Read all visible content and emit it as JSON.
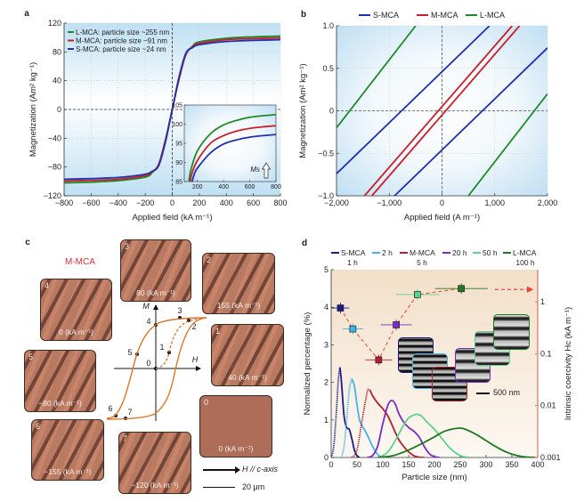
{
  "panel_labels": {
    "a": "a",
    "b": "b",
    "c": "c",
    "d": "d"
  },
  "chart_data": [
    {
      "panel": "a",
      "type": "line",
      "xlabel": "Applied field (kA m⁻¹)",
      "ylabel": "Magnetization (Am² kg⁻¹)",
      "xlim": [
        -800,
        800
      ],
      "ylim": [
        -120,
        120
      ],
      "xticks": [
        -800,
        -600,
        -400,
        -200,
        0,
        200,
        400,
        600,
        800
      ],
      "xtick_labels": [
        "−800",
        "−600",
        "−400",
        "−200",
        "0",
        "200",
        "400",
        "600",
        "800"
      ],
      "yticks": [
        -120,
        -80,
        -40,
        0,
        40,
        80,
        120
      ],
      "ytick_labels": [
        "−120",
        "−80",
        "−40",
        "0",
        "40",
        "80",
        "120"
      ],
      "grid": true,
      "legend_placement": "top-left",
      "series": [
        {
          "name": "L-MCA: particle size ~255 nm",
          "color": "#1f8a2a",
          "x": [
            -800,
            -600,
            -400,
            -200,
            -150,
            -100,
            -50,
            0,
            50,
            100,
            150,
            200,
            400,
            600,
            800
          ],
          "y": [
            -102,
            -101,
            -99,
            -94,
            -88,
            -76,
            -42,
            0,
            42,
            76,
            88,
            94,
            99,
            101,
            102
          ]
        },
        {
          "name": "M-MCA: particle size ~91 nm",
          "color": "#c8202a",
          "x": [
            -800,
            -600,
            -400,
            -200,
            -150,
            -100,
            -50,
            0,
            50,
            100,
            150,
            200,
            400,
            600,
            800
          ],
          "y": [
            -99.5,
            -98.5,
            -97,
            -92,
            -87,
            -76,
            -42,
            0,
            42,
            76,
            87,
            92,
            97,
            98.5,
            99.5
          ]
        },
        {
          "name": "S-MCA: particle size ~24 nm",
          "color": "#2030b0",
          "x": [
            -800,
            -600,
            -400,
            -200,
            -150,
            -100,
            -50,
            0,
            50,
            100,
            150,
            200,
            400,
            600,
            800
          ],
          "y": [
            -97,
            -96,
            -94.5,
            -90,
            -86,
            -78,
            -45,
            0,
            45,
            78,
            86,
            90,
            94.5,
            96,
            97
          ]
        }
      ],
      "inset": {
        "xlim": [
          100,
          800
        ],
        "ylim": [
          85,
          105
        ],
        "xticks": [
          200,
          400,
          600,
          800
        ],
        "xtick_labels": [
          "200",
          "400",
          "600",
          "800"
        ],
        "yticks": [
          85,
          90,
          95,
          100,
          105
        ],
        "ytick_labels": [
          "85",
          "90",
          "95",
          "100",
          "105"
        ],
        "annotation": "Ms",
        "series": [
          {
            "color": "#1f8a2a",
            "x": [
              135,
              150,
              200,
              300,
              400,
              500,
              600,
              700,
              800
            ],
            "y": [
              85,
              88,
              93,
              97.5,
              99.8,
              101,
              101.8,
              102.2,
              102.5
            ]
          },
          {
            "color": "#c8202a",
            "x": [
              145,
              160,
              200,
              300,
              400,
              500,
              600,
              700,
              800
            ],
            "y": [
              85,
              87.3,
              90.5,
              95,
              97,
              98.2,
              98.9,
              99.3,
              99.6
            ]
          },
          {
            "color": "#2030b0",
            "x": [
              160,
              175,
              200,
              300,
              400,
              500,
              600,
              700,
              800
            ],
            "y": [
              85,
              86.8,
              88.5,
              92.5,
              94.8,
              95.9,
              96.6,
              97,
              97.3
            ]
          }
        ]
      }
    },
    {
      "panel": "b",
      "type": "line",
      "xlabel": "Applied field (A m⁻¹)",
      "ylabel": "Magnetization (Am² kg⁻¹)",
      "xlim": [
        -2000,
        2000
      ],
      "ylim": [
        -1.0,
        1.0
      ],
      "xticks": [
        -2000,
        -1000,
        0,
        1000,
        2000
      ],
      "xtick_labels": [
        "−2,000",
        "−1,000",
        "0",
        "1,000",
        "2,000"
      ],
      "yticks": [
        -1.0,
        -0.5,
        0,
        0.5,
        1.0
      ],
      "ytick_labels": [
        "−1.0",
        "−0.5",
        "0",
        "0.5",
        "1.0"
      ],
      "grid": true,
      "legend_placement": "top",
      "series": [
        {
          "name": "S-MCA",
          "color": "#2030b0",
          "branches": [
            [
              [
                -2000,
                -0.74
              ],
              [
                900,
                1.0
              ]
            ],
            [
              [
                -900,
                -1.0
              ],
              [
                2000,
                0.74
              ]
            ]
          ]
        },
        {
          "name": "M-MCA",
          "color": "#c8202a",
          "branches": [
            [
              [
                -1470,
                -1.0
              ],
              [
                1330,
                1.0
              ]
            ],
            [
              [
                -1330,
                -1.0
              ],
              [
                1470,
                1.0
              ]
            ]
          ]
        },
        {
          "name": "L-MCA",
          "color": "#1f8a2a",
          "branches": [
            [
              [
                -2000,
                -0.2
              ],
              [
                -500,
                1.0
              ]
            ],
            [
              [
                500,
                -1.0
              ],
              [
                2000,
                0.2
              ]
            ]
          ]
        }
      ]
    },
    {
      "panel": "d",
      "type": "line",
      "xlabel": "Particle size (nm)",
      "ylabel": "Normalized percentage (%)",
      "y2label": "Intrinsic coercivity Hc (kA m⁻¹)",
      "xlim": [
        0,
        400
      ],
      "ylim": [
        0,
        5
      ],
      "y2lim": [
        0.001,
        4.2
      ],
      "y2scale": "log",
      "xticks": [
        0,
        50,
        100,
        150,
        200,
        250,
        300,
        350,
        400
      ],
      "xtick_labels": [
        "0",
        "50",
        "100",
        "150",
        "200",
        "250",
        "300",
        "350",
        "400"
      ],
      "yticks": [
        0,
        1,
        2,
        3,
        4,
        5
      ],
      "ytick_labels": [
        "0",
        "1",
        "2",
        "3",
        "4",
        "5"
      ],
      "y2ticks": [
        0.001,
        0.01,
        0.1,
        1
      ],
      "y2tick_labels": [
        "0.001",
        "0.01",
        "0.1",
        "1"
      ],
      "legend_placement": "top",
      "scale_bar": "500 nm",
      "series": [
        {
          "name": "S-MCA",
          "sub": "1 h",
          "color": "#1c1c86",
          "x": [
            0,
            5,
            10,
            14,
            17,
            20,
            25,
            30,
            35,
            40,
            45,
            50,
            55
          ],
          "y": [
            0,
            0.3,
            1.2,
            2.1,
            2.4,
            2.0,
            1.1,
            0.8,
            0.75,
            0.5,
            0.2,
            0.05,
            0
          ],
          "hc": {
            "size": 18,
            "size_err": 17,
            "value": 0.76
          }
        },
        {
          "name": "2 h",
          "sub": "",
          "color": "#3cb6ec",
          "x": [
            20,
            25,
            30,
            35,
            40,
            45,
            50,
            55,
            60,
            70,
            80,
            90,
            100
          ],
          "y": [
            0,
            0.3,
            1.0,
            1.8,
            2.1,
            1.9,
            1.4,
            1.0,
            0.85,
            0.6,
            0.3,
            0.08,
            0
          ],
          "hc": {
            "size": 42,
            "size_err": 20,
            "value": 0.3
          }
        },
        {
          "name": "M-MCA",
          "sub": "5 h",
          "color": "#b0202a",
          "x": [
            40,
            50,
            60,
            70,
            75,
            80,
            90,
            100,
            110,
            120,
            130,
            140,
            150,
            160,
            170,
            180
          ],
          "y": [
            0,
            0.2,
            1.0,
            1.75,
            1.8,
            1.65,
            1.45,
            1.3,
            1.1,
            0.8,
            0.5,
            0.3,
            0.15,
            0.05,
            0.01,
            0
          ],
          "hc": {
            "size": 92,
            "size_err": 26,
            "value": 0.076
          }
        },
        {
          "name": "20 h",
          "sub": "",
          "color": "#7a2cc0",
          "x": [
            70,
            80,
            90,
            100,
            110,
            118,
            125,
            130,
            140,
            150,
            160,
            170,
            180,
            190,
            200,
            210
          ],
          "y": [
            0,
            0.05,
            0.3,
            0.9,
            1.4,
            1.52,
            1.4,
            1.2,
            0.95,
            0.8,
            0.7,
            0.55,
            0.3,
            0.1,
            0.02,
            0
          ],
          "hc": {
            "size": 126,
            "size_err": 30,
            "value": 0.36
          }
        },
        {
          "name": "50 h",
          "sub": "",
          "color": "#5cd28a",
          "x": [
            90,
            100,
            110,
            120,
            130,
            140,
            150,
            165,
            175,
            185,
            200,
            215,
            230,
            250,
            270
          ],
          "y": [
            0,
            0.05,
            0.15,
            0.35,
            0.6,
            0.85,
            1.05,
            1.15,
            1.1,
            0.95,
            0.75,
            0.5,
            0.25,
            0.05,
            0
          ],
          "hc": {
            "size": 167,
            "size_err": 42,
            "value": 1.38
          }
        },
        {
          "name": "L-MCA",
          "sub": "100 h",
          "color": "#1d7a22",
          "x": [
            90,
            120,
            150,
            180,
            200,
            220,
            245,
            260,
            280,
            300,
            320,
            340,
            360,
            380,
            395
          ],
          "y": [
            0,
            0.05,
            0.2,
            0.4,
            0.55,
            0.7,
            0.78,
            0.75,
            0.62,
            0.45,
            0.28,
            0.14,
            0.05,
            0.01,
            0
          ],
          "hc": {
            "size": 252,
            "size_err": 51,
            "value": 1.8
          }
        }
      ]
    }
  ],
  "panel_c": {
    "title": "M-MCA",
    "title_color": "#d0303a",
    "loop_color": "#d9782a",
    "axis_m": "M",
    "axis_h": "H",
    "point_labels": [
      "0",
      "1",
      "2",
      "3",
      "4",
      "5",
      "6",
      "7"
    ],
    "images": [
      {
        "num": "3",
        "field": "80 (kA m⁻¹)"
      },
      {
        "num": "2",
        "field": "155 (kA m⁻¹)"
      },
      {
        "num": "4",
        "field": "0 (kA m⁻¹)"
      },
      {
        "num": "1",
        "field": "40 (kA m⁻¹)"
      },
      {
        "num": "5",
        "field": "−80 (kA m⁻¹)"
      },
      {
        "num": "0",
        "field": "0 (kA m⁻¹)"
      },
      {
        "num": "6",
        "field": "−155 (kA m⁻¹)"
      },
      {
        "num": "7",
        "field": "−120 (kA m⁻¹)"
      }
    ],
    "direction_label": "H // c-axis",
    "scale_bar": "20 μm"
  }
}
